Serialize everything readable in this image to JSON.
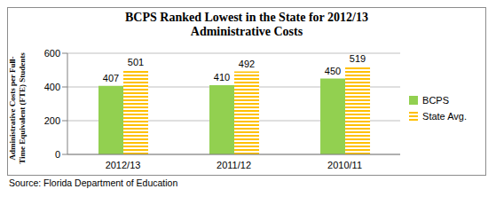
{
  "chart_data": {
    "type": "bar",
    "title": "BCPS Ranked Lowest in the State for 2012/13 Administrative Costs",
    "y_label": "Administrative Costs per Full-Time Equivalent (FTE) Students",
    "annotations": [
      "Source: Florida Department of Education"
    ],
    "categories": [
      "2012/13",
      "2011/12",
      "2010/11"
    ],
    "series": [
      {
        "name": "BCPS",
        "color": "#92d050",
        "values": [
          407,
          410,
          450
        ]
      },
      {
        "name": "State Avg.",
        "color": "#ffc000",
        "values": [
          501,
          492,
          519
        ]
      }
    ],
    "ylim": [
      0,
      600
    ],
    "yticks": [
      0,
      200,
      400,
      600
    ],
    "grid": true,
    "data_labels": true,
    "legend": "right"
  }
}
